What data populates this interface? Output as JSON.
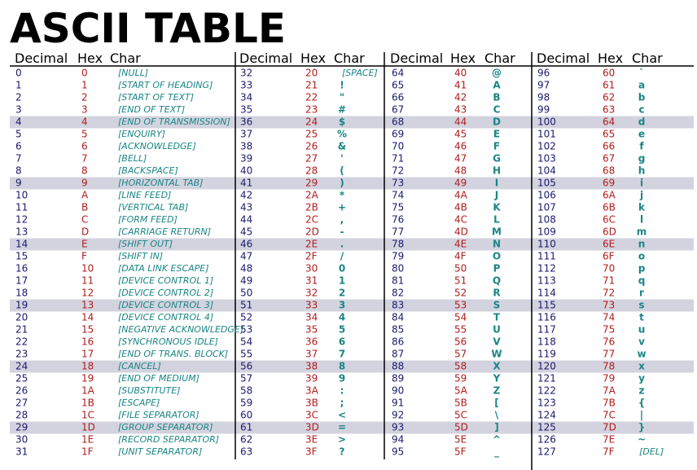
{
  "title": "ASCII TABLE",
  "blocks": [
    {
      "headers": [
        "Decimal",
        "Hex",
        "Char"
      ],
      "rows": [
        [
          0,
          "0",
          "[NULL]"
        ],
        [
          1,
          "1",
          "[START OF HEADING]"
        ],
        [
          2,
          "2",
          "[START OF TEXT]"
        ],
        [
          3,
          "3",
          "[END OF TEXT]"
        ],
        [
          4,
          "4",
          "[END OF TRANSMISSION]"
        ],
        [
          5,
          "5",
          "[ENQUIRY]"
        ],
        [
          6,
          "6",
          "[ACKNOWLEDGE]"
        ],
        [
          7,
          "7",
          "[BELL]"
        ],
        [
          8,
          "8",
          "[BACKSPACE]"
        ],
        [
          9,
          "9",
          "[HORIZONTAL TAB]"
        ],
        [
          10,
          "A",
          "[LINE FEED]"
        ],
        [
          11,
          "B",
          "[VERTICAL TAB]"
        ],
        [
          12,
          "C",
          "[FORM FEED]"
        ],
        [
          13,
          "D",
          "[CARRIAGE RETURN]"
        ],
        [
          14,
          "E",
          "[SHIFT OUT]"
        ],
        [
          15,
          "F",
          "[SHIFT IN]"
        ],
        [
          16,
          "10",
          "[DATA LINK ESCAPE]"
        ],
        [
          17,
          "11",
          "[DEVICE CONTROL 1]"
        ],
        [
          18,
          "12",
          "[DEVICE CONTROL 2]"
        ],
        [
          19,
          "13",
          "[DEVICE CONTROL 3]"
        ],
        [
          20,
          "14",
          "[DEVICE CONTROL 4]"
        ],
        [
          21,
          "15",
          "[NEGATIVE ACKNOWLEDGE]"
        ],
        [
          22,
          "16",
          "[SYNCHRONOUS IDLE]"
        ],
        [
          23,
          "17",
          "[END OF TRANS. BLOCK]"
        ],
        [
          24,
          "18",
          "[CANCEL]"
        ],
        [
          25,
          "19",
          "[END OF MEDIUM]"
        ],
        [
          26,
          "1A",
          "[SUBSTITUTE]"
        ],
        [
          27,
          "1B",
          "[ESCAPE]"
        ],
        [
          28,
          "1C",
          "[FILE SEPARATOR]"
        ],
        [
          29,
          "1D",
          "[GROUP SEPARATOR]"
        ],
        [
          30,
          "1E",
          "[RECORD SEPARATOR]"
        ],
        [
          31,
          "1F",
          "[UNIT SEPARATOR]"
        ]
      ]
    },
    {
      "headers": [
        "Decimal",
        "Hex",
        "Char"
      ],
      "rows": [
        [
          32,
          "20",
          "[SPACE]"
        ],
        [
          33,
          "21",
          "!"
        ],
        [
          34,
          "22",
          "\""
        ],
        [
          35,
          "23",
          "#"
        ],
        [
          36,
          "24",
          "$"
        ],
        [
          37,
          "25",
          "%"
        ],
        [
          38,
          "26",
          "&"
        ],
        [
          39,
          "27",
          "'"
        ],
        [
          40,
          "28",
          "("
        ],
        [
          41,
          "29",
          ")"
        ],
        [
          42,
          "2A",
          "*"
        ],
        [
          43,
          "2B",
          "+"
        ],
        [
          44,
          "2C",
          ","
        ],
        [
          45,
          "2D",
          "-"
        ],
        [
          46,
          "2E",
          "."
        ],
        [
          47,
          "2F",
          "/"
        ],
        [
          48,
          "30",
          "0"
        ],
        [
          49,
          "31",
          "1"
        ],
        [
          50,
          "32",
          "2"
        ],
        [
          51,
          "33",
          "3"
        ],
        [
          52,
          "34",
          "4"
        ],
        [
          53,
          "35",
          "5"
        ],
        [
          54,
          "36",
          "6"
        ],
        [
          55,
          "37",
          "7"
        ],
        [
          56,
          "38",
          "8"
        ],
        [
          57,
          "39",
          "9"
        ],
        [
          58,
          "3A",
          ":"
        ],
        [
          59,
          "3B",
          ";"
        ],
        [
          60,
          "3C",
          "<"
        ],
        [
          61,
          "3D",
          "="
        ],
        [
          62,
          "3E",
          ">"
        ],
        [
          63,
          "3F",
          "?"
        ]
      ]
    },
    {
      "headers": [
        "Decimal",
        "Hex",
        "Char"
      ],
      "rows": [
        [
          64,
          "40",
          "@"
        ],
        [
          65,
          "41",
          "A"
        ],
        [
          66,
          "42",
          "B"
        ],
        [
          67,
          "43",
          "C"
        ],
        [
          68,
          "44",
          "D"
        ],
        [
          69,
          "45",
          "E"
        ],
        [
          70,
          "46",
          "F"
        ],
        [
          71,
          "47",
          "G"
        ],
        [
          72,
          "48",
          "H"
        ],
        [
          73,
          "49",
          "I"
        ],
        [
          74,
          "4A",
          "J"
        ],
        [
          75,
          "4B",
          "K"
        ],
        [
          76,
          "4C",
          "L"
        ],
        [
          77,
          "4D",
          "M"
        ],
        [
          78,
          "4E",
          "N"
        ],
        [
          79,
          "4F",
          "O"
        ],
        [
          80,
          "50",
          "P"
        ],
        [
          81,
          "51",
          "Q"
        ],
        [
          82,
          "52",
          "R"
        ],
        [
          83,
          "53",
          "S"
        ],
        [
          84,
          "54",
          "T"
        ],
        [
          85,
          "55",
          "U"
        ],
        [
          86,
          "56",
          "V"
        ],
        [
          87,
          "57",
          "W"
        ],
        [
          88,
          "58",
          "X"
        ],
        [
          89,
          "59",
          "Y"
        ],
        [
          90,
          "5A",
          "Z"
        ],
        [
          91,
          "5B",
          "["
        ],
        [
          92,
          "5C",
          "\\"
        ],
        [
          93,
          "5D",
          "]"
        ],
        [
          94,
          "5E",
          "^"
        ],
        [
          95,
          "5F",
          "_"
        ]
      ]
    },
    {
      "headers": [
        "Decimal",
        "Hex",
        "Char"
      ],
      "rows": [
        [
          96,
          "60",
          "`"
        ],
        [
          97,
          "61",
          "a"
        ],
        [
          98,
          "62",
          "b"
        ],
        [
          99,
          "63",
          "c"
        ],
        [
          100,
          "64",
          "d"
        ],
        [
          101,
          "65",
          "e"
        ],
        [
          102,
          "66",
          "f"
        ],
        [
          103,
          "67",
          "g"
        ],
        [
          104,
          "68",
          "h"
        ],
        [
          105,
          "69",
          "i"
        ],
        [
          106,
          "6A",
          "j"
        ],
        [
          107,
          "6B",
          "k"
        ],
        [
          108,
          "6C",
          "l"
        ],
        [
          109,
          "6D",
          "m"
        ],
        [
          110,
          "6E",
          "n"
        ],
        [
          111,
          "6F",
          "o"
        ],
        [
          112,
          "70",
          "p"
        ],
        [
          113,
          "71",
          "q"
        ],
        [
          114,
          "72",
          "r"
        ],
        [
          115,
          "73",
          "s"
        ],
        [
          116,
          "74",
          "t"
        ],
        [
          117,
          "75",
          "u"
        ],
        [
          118,
          "76",
          "v"
        ],
        [
          119,
          "77",
          "w"
        ],
        [
          120,
          "78",
          "x"
        ],
        [
          121,
          "79",
          "y"
        ],
        [
          122,
          "7A",
          "z"
        ],
        [
          123,
          "7B",
          "{"
        ],
        [
          124,
          "7C",
          "|"
        ],
        [
          125,
          "7D",
          "}"
        ],
        [
          126,
          "7E",
          "~"
        ],
        [
          127,
          "7F",
          "[DEL]"
        ]
      ]
    }
  ]
}
